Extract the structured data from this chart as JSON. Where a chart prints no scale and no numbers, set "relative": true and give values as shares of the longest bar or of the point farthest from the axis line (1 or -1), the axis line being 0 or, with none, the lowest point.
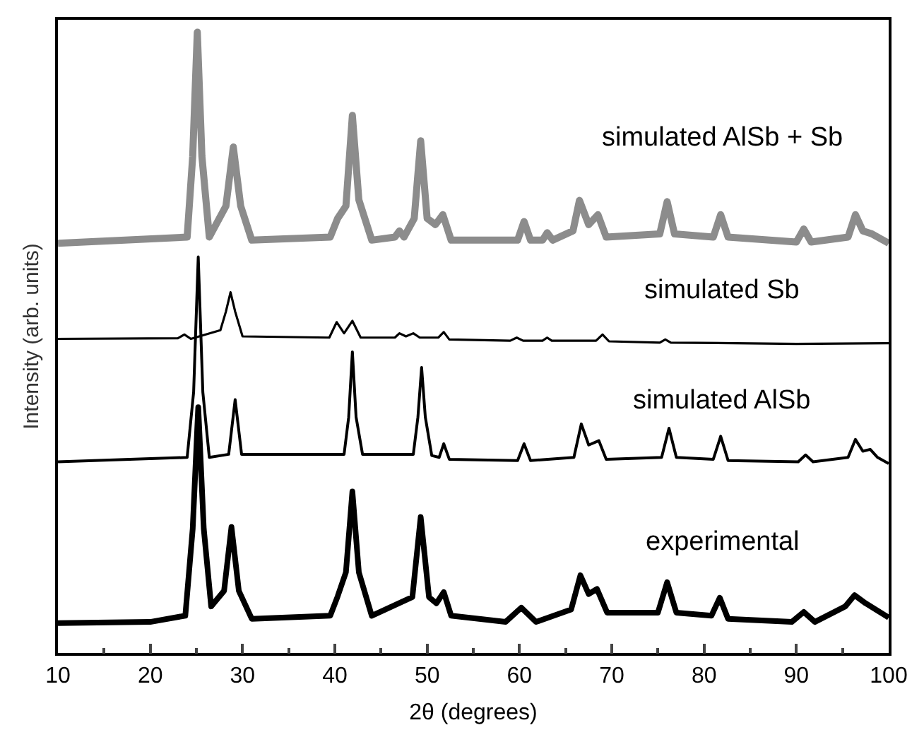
{
  "chart_data": {
    "type": "line",
    "relative": true,
    "xlabel": "2θ (degrees)",
    "ylabel": "Intensity (arb. units)",
    "xlim": [
      10,
      100
    ],
    "xticks": [
      10,
      20,
      30,
      40,
      50,
      60,
      70,
      80,
      90,
      100
    ],
    "legend": false,
    "marker": "none",
    "line_style": "solid",
    "series": [
      {
        "name": "simulated AlSb + Sb",
        "color": "#8c8c8c",
        "x": [
          10,
          24,
          24.6,
          25.1,
          25.6,
          26.4,
          28.2,
          29,
          29.8,
          31,
          39.5,
          40.3,
          41.2,
          41.9,
          42.6,
          44,
          46.5,
          47,
          47.5,
          48.6,
          49.3,
          50,
          50.9,
          51.7,
          52.6,
          59.8,
          60.5,
          61.2,
          62.5,
          63,
          63.6,
          65.8,
          66.5,
          67.5,
          68.5,
          69.4,
          75.2,
          76,
          76.8,
          81,
          81.8,
          82.6,
          90,
          90.8,
          91.6,
          95.6,
          96.4,
          97.2,
          98.2,
          100
        ],
        "values": [
          0.66,
          0.67,
          0.8,
          1.0,
          0.8,
          0.67,
          0.72,
          0.815,
          0.72,
          0.665,
          0.67,
          0.7,
          0.72,
          0.866,
          0.73,
          0.665,
          0.67,
          0.68,
          0.67,
          0.7,
          0.825,
          0.7,
          0.69,
          0.706,
          0.665,
          0.665,
          0.695,
          0.665,
          0.665,
          0.677,
          0.665,
          0.68,
          0.729,
          0.69,
          0.706,
          0.67,
          0.675,
          0.727,
          0.675,
          0.67,
          0.706,
          0.67,
          0.662,
          0.683,
          0.662,
          0.67,
          0.706,
          0.68,
          0.675,
          0.66
        ]
      },
      {
        "name": "simulated Sb",
        "color": "#000000",
        "x": [
          10,
          23,
          23.7,
          24.4,
          27.6,
          28.2,
          28.7,
          29.2,
          30,
          39.4,
          40.2,
          41,
          41.9,
          42.8,
          46.5,
          47,
          47.7,
          48.5,
          49.2,
          51.2,
          51.8,
          52.4,
          59,
          59.7,
          60.4,
          62.5,
          63,
          63.5,
          68.3,
          69,
          69.7,
          75.2,
          75.8,
          76.4,
          90,
          100
        ],
        "values": [
          0.506,
          0.507,
          0.513,
          0.506,
          0.52,
          0.55,
          0.581,
          0.55,
          0.51,
          0.508,
          0.533,
          0.515,
          0.535,
          0.508,
          0.508,
          0.515,
          0.51,
          0.515,
          0.508,
          0.508,
          0.517,
          0.505,
          0.503,
          0.508,
          0.503,
          0.503,
          0.508,
          0.503,
          0.503,
          0.513,
          0.502,
          0.5,
          0.505,
          0.5,
          0.498,
          0.499
        ]
      },
      {
        "name": "simulated AlSb",
        "color": "#000000",
        "x": [
          10,
          24,
          24.7,
          25.2,
          25.7,
          26.4,
          28.5,
          29.2,
          29.9,
          41,
          41.5,
          41.9,
          42.3,
          43,
          48.5,
          49,
          49.4,
          49.8,
          50.5,
          51.3,
          51.8,
          52.4,
          59.8,
          60.5,
          61.2,
          65.9,
          66.7,
          67.5,
          68.6,
          69.4,
          75.4,
          76.2,
          77,
          81,
          81.8,
          82.6,
          90.2,
          91,
          91.8,
          95.6,
          96.4,
          97.2,
          98,
          98.8,
          100
        ],
        "values": [
          0.308,
          0.315,
          0.42,
          0.638,
          0.42,
          0.315,
          0.32,
          0.408,
          0.32,
          0.32,
          0.38,
          0.485,
          0.38,
          0.32,
          0.32,
          0.38,
          0.46,
          0.38,
          0.318,
          0.315,
          0.337,
          0.312,
          0.31,
          0.337,
          0.31,
          0.315,
          0.369,
          0.335,
          0.342,
          0.312,
          0.315,
          0.362,
          0.315,
          0.312,
          0.349,
          0.31,
          0.308,
          0.319,
          0.308,
          0.315,
          0.344,
          0.325,
          0.328,
          0.315,
          0.305
        ]
      },
      {
        "name": "experimental",
        "color": "#000000",
        "x": [
          10,
          20,
          23.8,
          24.6,
          25.2,
          25.8,
          26.6,
          28,
          28.8,
          29.6,
          31,
          39.5,
          40.3,
          41.2,
          41.9,
          42.6,
          44,
          48.4,
          49.3,
          50.2,
          51,
          51.8,
          52.6,
          58.5,
          60.2,
          61.8,
          65.6,
          66.6,
          67.5,
          68.4,
          69.5,
          75,
          76,
          77,
          80.8,
          81.7,
          82.6,
          89.5,
          90.8,
          92,
          95.3,
          96.3,
          97.5,
          100
        ],
        "values": [
          0.048,
          0.05,
          0.06,
          0.2,
          0.396,
          0.2,
          0.075,
          0.1,
          0.203,
          0.1,
          0.055,
          0.06,
          0.091,
          0.13,
          0.26,
          0.13,
          0.06,
          0.09,
          0.219,
          0.09,
          0.08,
          0.098,
          0.06,
          0.05,
          0.073,
          0.05,
          0.07,
          0.125,
          0.095,
          0.103,
          0.065,
          0.065,
          0.114,
          0.065,
          0.06,
          0.089,
          0.055,
          0.05,
          0.066,
          0.05,
          0.075,
          0.093,
          0.08,
          0.057
        ]
      }
    ]
  }
}
